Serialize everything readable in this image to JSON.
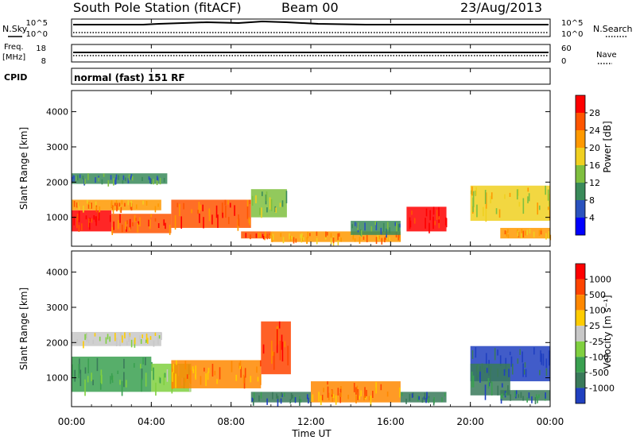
{
  "header": {
    "title": "South Pole Station (fitACF)",
    "beam": "Beam 00",
    "date": "23/Aug/2013"
  },
  "top_panels": {
    "nsky_label": "N.Sky",
    "nsearch_label": "N.Search",
    "nsky_ticks": [
      "10^5",
      "10^0"
    ],
    "nsearch_ticks": [
      "10^5",
      "10^0"
    ],
    "freq_label": "Freq.",
    "freq_unit": "[MHz]",
    "freq_ticks": [
      "18",
      "8"
    ],
    "nave_label": "Nave",
    "nave_ticks": [
      "60",
      "0"
    ],
    "cpid_label": "CPID",
    "cpid_text": "normal (fast) 151 RF"
  },
  "x_axis": {
    "label": "Time UT",
    "ticks": [
      "00:00",
      "04:00",
      "08:00",
      "12:00",
      "16:00",
      "20:00",
      "00:00"
    ],
    "range_hours": [
      0,
      24
    ]
  },
  "chart_data": [
    {
      "type": "heatmap",
      "name": "power",
      "ylabel": "Slant Range [km]",
      "yticks": [
        "1000",
        "2000",
        "3000",
        "4000"
      ],
      "ylim": [
        180,
        4600
      ],
      "colorbar": {
        "label": "Power [dB]",
        "ticks": [
          "4",
          "8",
          "12",
          "16",
          "20",
          "24",
          "28"
        ],
        "colors": [
          "#0000ff",
          "#2a52be",
          "#3a8a5a",
          "#7fbf3f",
          "#f0d020",
          "#ff9900",
          "#ff5500",
          "#ff0000"
        ]
      },
      "regions": [
        {
          "t": [
            0.0,
            2.0
          ],
          "r": [
            600,
            1200
          ],
          "level": 7
        },
        {
          "t": [
            0.0,
            4.5
          ],
          "r": [
            1200,
            1500
          ],
          "level": 5
        },
        {
          "t": [
            0.0,
            4.8
          ],
          "r": [
            1950,
            2250
          ],
          "level": 2
        },
        {
          "t": [
            2.0,
            5.0
          ],
          "r": [
            550,
            1100
          ],
          "level": 6
        },
        {
          "t": [
            5.0,
            9.0
          ],
          "r": [
            700,
            1500
          ],
          "level": 6
        },
        {
          "t": [
            9.0,
            10.8
          ],
          "r": [
            1000,
            1800
          ],
          "level": 3
        },
        {
          "t": [
            8.5,
            10.0
          ],
          "r": [
            400,
            600
          ],
          "level": 6
        },
        {
          "t": [
            10.0,
            16.5
          ],
          "r": [
            300,
            600
          ],
          "level": 5
        },
        {
          "t": [
            14.0,
            16.5
          ],
          "r": [
            500,
            900
          ],
          "level": 2
        },
        {
          "t": [
            16.8,
            18.8
          ],
          "r": [
            600,
            1300
          ],
          "level": 7
        },
        {
          "t": [
            20.0,
            24.0
          ],
          "r": [
            900,
            1900
          ],
          "level": 4
        },
        {
          "t": [
            21.5,
            24.0
          ],
          "r": [
            400,
            700
          ],
          "level": 5
        }
      ]
    },
    {
      "type": "heatmap",
      "name": "velocity",
      "ylabel": "Slant Range [km]",
      "yticks": [
        "1000",
        "2000",
        "3000",
        "4000"
      ],
      "ylim": [
        180,
        4600
      ],
      "colorbar": {
        "label": "Velocity [m s⁻¹]",
        "ticks": [
          "1000",
          "500",
          "100",
          "25",
          "-25",
          "-100",
          "-500",
          "-1000"
        ],
        "colors": [
          "#2040c0",
          "#3a7a5a",
          "#3aa050",
          "#80d040",
          "#c8c8c8",
          "#ffcc00",
          "#ff8800",
          "#ff4400",
          "#ff0000"
        ]
      },
      "regions": [
        {
          "t": [
            0.0,
            4.5
          ],
          "r": [
            1900,
            2300
          ],
          "level": 4
        },
        {
          "t": [
            0.0,
            4.0
          ],
          "r": [
            600,
            1600
          ],
          "level": 2
        },
        {
          "t": [
            4.0,
            6.0
          ],
          "r": [
            600,
            1400
          ],
          "level": 3
        },
        {
          "t": [
            5.0,
            9.5
          ],
          "r": [
            700,
            1500
          ],
          "level": 6
        },
        {
          "t": [
            9.5,
            11.0
          ],
          "r": [
            1100,
            2600
          ],
          "level": 7
        },
        {
          "t": [
            9.0,
            12.0
          ],
          "r": [
            300,
            600
          ],
          "level": 1
        },
        {
          "t": [
            12.0,
            16.5
          ],
          "r": [
            300,
            900
          ],
          "level": 6
        },
        {
          "t": [
            16.5,
            18.8
          ],
          "r": [
            300,
            600
          ],
          "level": 1
        },
        {
          "t": [
            20.0,
            24.0
          ],
          "r": [
            900,
            1900
          ],
          "level": 0
        },
        {
          "t": [
            20.0,
            22.0
          ],
          "r": [
            500,
            1400
          ],
          "level": 1
        },
        {
          "t": [
            21.5,
            24.0
          ],
          "r": [
            350,
            650
          ],
          "level": 1
        }
      ]
    }
  ]
}
